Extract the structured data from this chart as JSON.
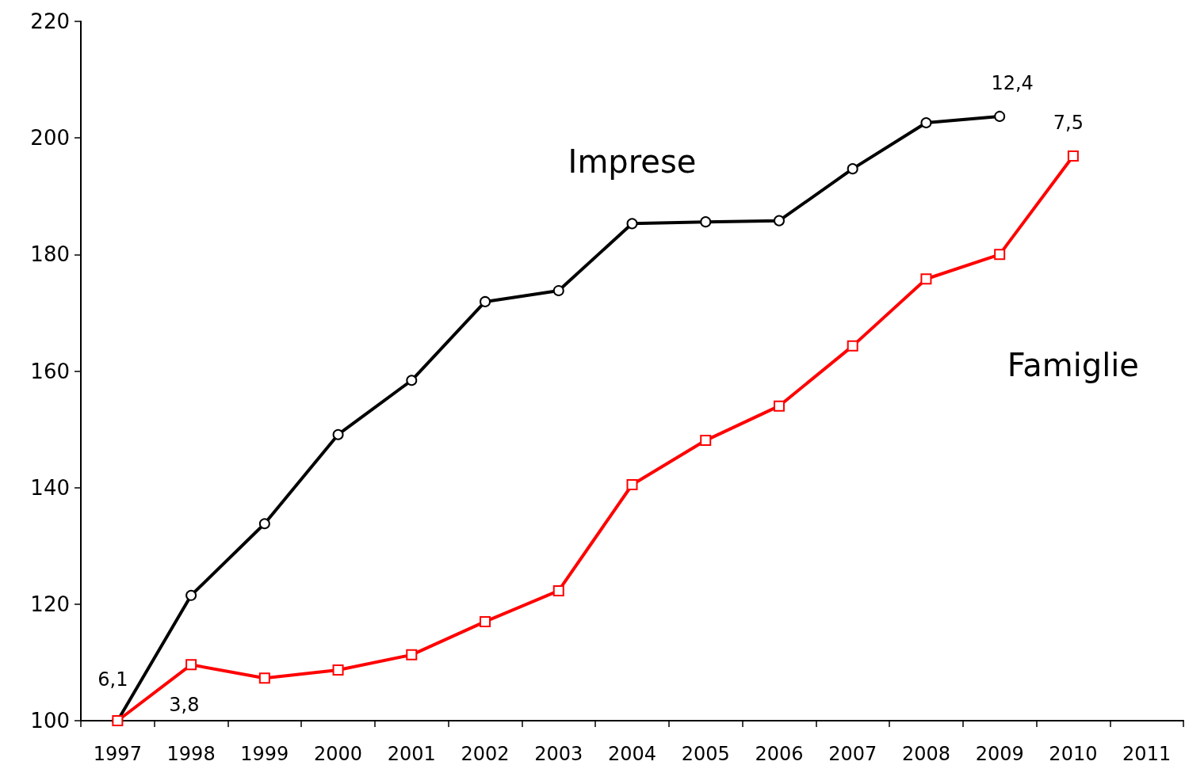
{
  "chart_data": {
    "type": "line",
    "categories": [
      "1997",
      "1998",
      "1999",
      "2000",
      "2001",
      "2002",
      "2003",
      "2004",
      "2005",
      "2006",
      "2007",
      "2008",
      "2009",
      "2010",
      "2011"
    ],
    "series": [
      {
        "name": "Imprese",
        "color": "#000000",
        "marker": "circle",
        "values": [
          100,
          121.5,
          133.8,
          149.1,
          158.4,
          171.9,
          173.8,
          185.3,
          185.6,
          185.8,
          194.7,
          202.6,
          203.7,
          null,
          null
        ]
      },
      {
        "name": "Famiglie",
        "color": "#ff0000",
        "marker": "square",
        "values": [
          100,
          109.6,
          107.3,
          108.7,
          111.3,
          117.0,
          122.3,
          140.5,
          148.1,
          154.0,
          164.3,
          175.8,
          180.0,
          196.9,
          null
        ]
      }
    ],
    "ylim": [
      100,
      220
    ],
    "yticks": [
      100,
      120,
      140,
      160,
      180,
      200,
      220
    ],
    "grid": false,
    "line_style": "solid",
    "annotations": [
      {
        "text": "6,1",
        "x": "1997",
        "y": 100
      },
      {
        "text": "3,8",
        "x": "1997",
        "y": 100
      },
      {
        "text": "12,4",
        "x": "2009",
        "y": 203.7
      },
      {
        "text": "7,5",
        "x": "2010",
        "y": 196.9
      }
    ]
  }
}
